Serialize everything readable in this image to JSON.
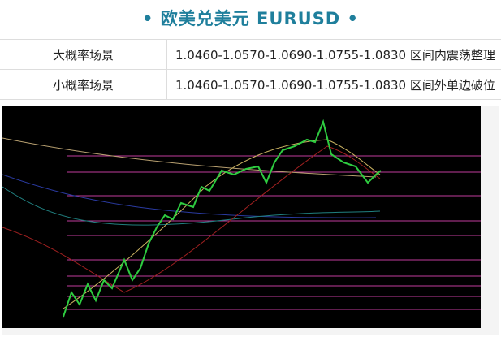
{
  "header": {
    "title": "• 欧美兑美元 EURUSD •"
  },
  "table": {
    "rows": [
      [
        "大概率场景",
        "1.0460-1.0570-1.0690-1.0755-1.0830 区间内震荡整理"
      ],
      [
        "小概率场景",
        "1.0460-1.0570-1.0690-1.0755-1.0830 区间外单边破位"
      ]
    ]
  }
}
